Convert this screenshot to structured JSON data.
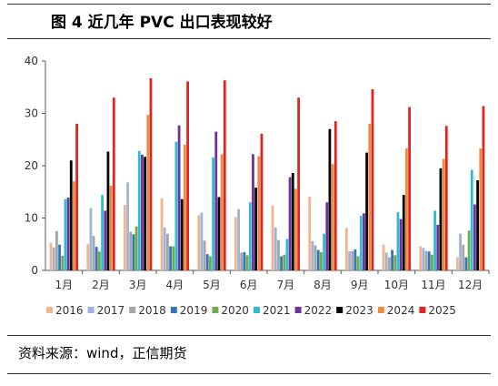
{
  "header": {
    "title": "图 4    近几年 PVC 出口表现较好"
  },
  "footer": {
    "source": "资料来源：wind，正信期货"
  },
  "chart_data": {
    "type": "bar",
    "title": "近几年 PVC 出口表现较好",
    "xlabel": "",
    "ylabel": "",
    "ylim": [
      0,
      40
    ],
    "yticks": [
      0,
      10,
      20,
      30,
      40
    ],
    "grid": false,
    "legend": "bottom",
    "categories": [
      "1月",
      "2月",
      "3月",
      "4月",
      "5月",
      "6月",
      "7月",
      "8月",
      "9月",
      "10月",
      "11月",
      "12月"
    ],
    "series": [
      {
        "name": "2016",
        "color": "#f2b48c",
        "values": [
          5.3,
          5.0,
          12.5,
          13.8,
          10.5,
          10.2,
          12.4,
          14.1,
          8.1,
          4.9,
          4.6,
          2.5
        ]
      },
      {
        "name": "2017",
        "color": "#9db4d8",
        "values": [
          4.4,
          11.9,
          16.8,
          8.2,
          11.0,
          11.7,
          8.2,
          5.6,
          3.6,
          3.4,
          4.3,
          7.0
        ]
      },
      {
        "name": "2018",
        "color": "#a5a5a5",
        "values": [
          7.5,
          6.6,
          7.4,
          7.0,
          5.7,
          3.4,
          5.8,
          4.8,
          3.7,
          2.5,
          3.7,
          4.9
        ]
      },
      {
        "name": "2019",
        "color": "#3576b8",
        "values": [
          4.9,
          4.5,
          6.9,
          4.6,
          3.1,
          3.5,
          2.7,
          3.9,
          4.0,
          3.9,
          3.6,
          2.5
        ]
      },
      {
        "name": "2020",
        "color": "#6fac47",
        "values": [
          2.8,
          3.6,
          8.4,
          4.6,
          2.7,
          2.9,
          3.0,
          3.5,
          2.7,
          2.9,
          3.0,
          7.6
        ]
      },
      {
        "name": "2021",
        "color": "#2fbcd0",
        "values": [
          13.6,
          14.4,
          22.8,
          24.6,
          21.6,
          13.0,
          6.0,
          7.0,
          10.4,
          11.1,
          11.4,
          19.2
        ]
      },
      {
        "name": "2022",
        "color": "#7030a0",
        "values": [
          13.9,
          11.4,
          22.1,
          27.7,
          26.5,
          22.2,
          17.8,
          13.0,
          10.9,
          9.8,
          8.7,
          12.6
        ]
      },
      {
        "name": "2023",
        "color": "#000000",
        "values": [
          21.0,
          22.7,
          21.7,
          13.6,
          14.0,
          15.8,
          18.6,
          27.0,
          22.5,
          14.4,
          19.5,
          17.2
        ]
      },
      {
        "name": "2024",
        "color": "#f08a3c",
        "values": [
          17.0,
          16.2,
          29.7,
          24.0,
          22.2,
          21.8,
          15.6,
          20.3,
          28.0,
          23.3,
          21.3,
          23.3
        ]
      },
      {
        "name": "2025",
        "color": "#e5231e",
        "values": [
          28.0,
          33.0,
          36.7,
          36.1,
          36.3,
          26.1,
          33.0,
          28.5,
          34.6,
          31.2,
          27.6,
          31.4
        ]
      }
    ]
  }
}
